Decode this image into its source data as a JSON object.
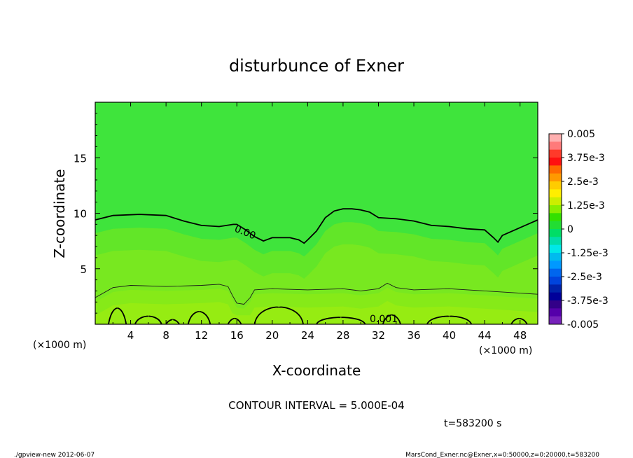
{
  "chart_data": {
    "type": "contour",
    "title": "disturbunce of Exner",
    "xlabel": "X-coordinate",
    "ylabel": "Z-coordinate",
    "x_unit": "(×1000 m)",
    "xlim": [
      0,
      50
    ],
    "ylim": [
      0,
      20
    ],
    "x_ticks": [
      "4",
      "8",
      "12",
      "16",
      "20",
      "24",
      "28",
      "32",
      "36",
      "40",
      "44",
      "48"
    ],
    "y_ticks": [
      "5",
      "10",
      "15"
    ],
    "contour_interval_text": "CONTOUR INTERVAL = 5.000E-04",
    "time_text": "t=583200 s",
    "contour_labels": [
      "0.00",
      "0.001"
    ],
    "colorbar": {
      "labels": [
        "0.005",
        "3.75e-3",
        "2.5e-3",
        "1.25e-3",
        "0",
        "-1.25e-3",
        "-2.5e-3",
        "-3.75e-3",
        "-0.005"
      ],
      "colors": [
        "#ffb0b0",
        "#ff7a7a",
        "#ff3a2a",
        "#ff1010",
        "#ff6a00",
        "#ff9900",
        "#ffcc00",
        "#ffee00",
        "#ccee00",
        "#88ee00",
        "#33e000",
        "#22dd33",
        "#00dd66",
        "#00ddaa",
        "#00e8e8",
        "#00bbee",
        "#0099ff",
        "#0066ee",
        "#0044dd",
        "#0022aa",
        "#000099",
        "#330088",
        "#5500aa",
        "#7722bb"
      ]
    },
    "contour_lines": [
      {
        "level": "0.00",
        "points": [
          [
            0,
            9.4
          ],
          [
            2,
            9.8
          ],
          [
            5,
            9.9
          ],
          [
            8,
            9.8
          ],
          [
            10,
            9.3
          ],
          [
            12,
            8.9
          ],
          [
            14,
            8.8
          ],
          [
            15.6,
            9.0
          ],
          [
            16,
            9.0
          ],
          [
            17,
            8.5
          ],
          [
            18,
            7.9
          ],
          [
            19,
            7.5
          ],
          [
            20,
            7.8
          ],
          [
            22,
            7.8
          ],
          [
            23,
            7.6
          ],
          [
            23.6,
            7.3
          ],
          [
            24,
            7.6
          ],
          [
            25,
            8.4
          ],
          [
            26,
            9.6
          ],
          [
            27,
            10.2
          ],
          [
            28,
            10.4
          ],
          [
            29,
            10.4
          ],
          [
            30,
            10.3
          ],
          [
            31,
            10.1
          ],
          [
            32,
            9.6
          ],
          [
            34,
            9.5
          ],
          [
            36,
            9.3
          ],
          [
            38,
            8.9
          ],
          [
            40,
            8.8
          ],
          [
            42,
            8.6
          ],
          [
            44,
            8.5
          ],
          [
            45,
            7.8
          ],
          [
            45.5,
            7.4
          ],
          [
            46,
            8.0
          ],
          [
            48,
            8.7
          ],
          [
            50,
            9.4
          ]
        ]
      },
      {
        "level": "0.0005",
        "points": [
          [
            0,
            2.4
          ],
          [
            2,
            3.3
          ],
          [
            4,
            3.5
          ],
          [
            8,
            3.4
          ],
          [
            12,
            3.5
          ],
          [
            14,
            3.6
          ],
          [
            15,
            3.4
          ],
          [
            15.5,
            2.6
          ],
          [
            16,
            1.9
          ],
          [
            16.8,
            1.8
          ],
          [
            17.5,
            2.4
          ],
          [
            18,
            3.1
          ],
          [
            20,
            3.2
          ],
          [
            24,
            3.1
          ],
          [
            28,
            3.2
          ],
          [
            30,
            3.0
          ],
          [
            32,
            3.2
          ],
          [
            33,
            3.7
          ],
          [
            34,
            3.3
          ],
          [
            36,
            3.1
          ],
          [
            40,
            3.2
          ],
          [
            44,
            3.0
          ],
          [
            48,
            2.8
          ],
          [
            50,
            2.7
          ]
        ]
      }
    ]
  },
  "footer": {
    "left": "./gpview-new  2012-06-07",
    "right": "MarsCond_Exner.nc@Exner,x=0:50000,z=0:20000,t=583200"
  }
}
